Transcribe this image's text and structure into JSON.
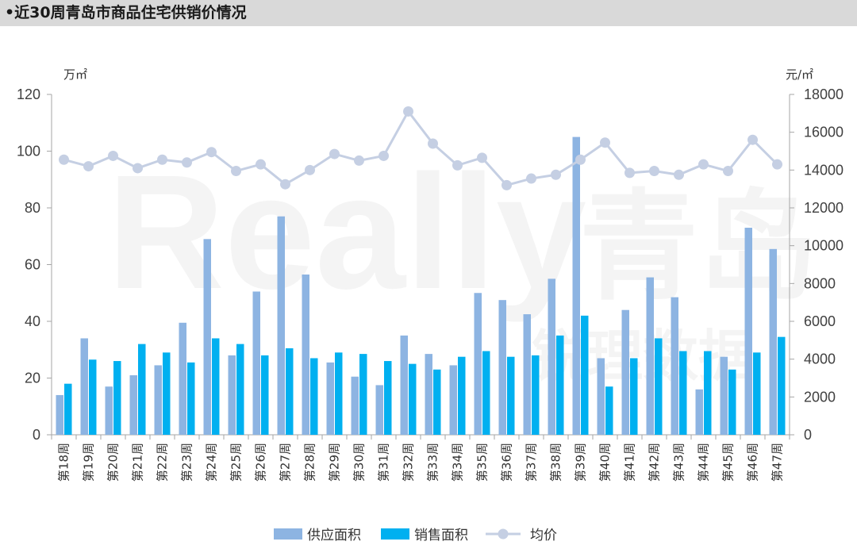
{
  "header": {
    "title": "•近30周青岛市商品住宅供销价情况"
  },
  "chart_data": {
    "type": "bar",
    "title": "",
    "y_left_unit": "万㎡",
    "y_right_unit": "元/㎡",
    "y_left_range": [
      0,
      120
    ],
    "y_left_ticks": [
      "0",
      "20",
      "40",
      "60",
      "80",
      "100",
      "120"
    ],
    "y_right_range": [
      0,
      18000
    ],
    "y_right_ticks": [
      "0",
      "2000",
      "4000",
      "6000",
      "8000",
      "10000",
      "12000",
      "14000",
      "16000",
      "18000"
    ],
    "categories": [
      "第18周",
      "第19周",
      "第20周",
      "第21周",
      "第22周",
      "第23周",
      "第24周",
      "第25周",
      "第26周",
      "第27周",
      "第28周",
      "第29周",
      "第30周",
      "第31周",
      "第32周",
      "第33周",
      "第34周",
      "第35周",
      "第36周",
      "第37周",
      "第38周",
      "第39周",
      "第40周",
      "第41周",
      "第42周",
      "第43周",
      "第44周",
      "第45周",
      "第46周",
      "第47周"
    ],
    "series": [
      {
        "name": "供应面积",
        "type": "bar",
        "axis": "left",
        "color": "#8db4e2",
        "values": [
          14,
          34,
          17,
          21,
          24.5,
          39.5,
          69,
          28,
          50.5,
          77,
          56.5,
          25.5,
          20.5,
          17.5,
          35,
          28.5,
          24.5,
          50,
          47.5,
          42.5,
          55,
          105,
          27,
          44,
          55.5,
          48.5,
          16,
          27.5,
          73,
          65.5
        ]
      },
      {
        "name": "销售面积",
        "type": "bar",
        "axis": "left",
        "color": "#00b0f0",
        "values": [
          18,
          26.5,
          26,
          32,
          29,
          25.5,
          34,
          32,
          28,
          30.5,
          27,
          29,
          28.5,
          26,
          25,
          23,
          27.5,
          29.5,
          27.5,
          28,
          35,
          42,
          17,
          27,
          34,
          29.5,
          29.5,
          23,
          29,
          34.5
        ]
      },
      {
        "name": "均价",
        "type": "line",
        "axis": "right",
        "color": "#c5cfe3",
        "values": [
          14550,
          14200,
          14750,
          14100,
          14550,
          14400,
          14950,
          13950,
          14300,
          13250,
          14000,
          14850,
          14500,
          14750,
          17100,
          15400,
          14250,
          14650,
          13200,
          13550,
          13750,
          14550,
          15450,
          13850,
          13950,
          13750,
          14300,
          13950,
          15600,
          14300
        ]
      }
    ],
    "legend": {
      "position": "bottom"
    },
    "watermark": {
      "text": "Really",
      "text2": "青岛",
      "text3": "锐理数据"
    }
  }
}
